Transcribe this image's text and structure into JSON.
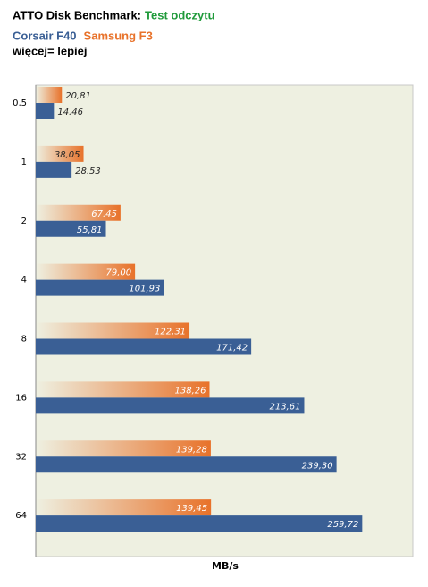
{
  "chart_data": {
    "type": "hbar",
    "title": "ATTO Disk Benchmark:",
    "title_highlight": "Test odczytu",
    "subtitle": "więcej= lepiej",
    "x_label": "MB/s",
    "categories": [
      "0,5",
      "1",
      "2",
      "4",
      "8",
      "16",
      "32",
      "64"
    ],
    "series": [
      {
        "name": "Corsair F40",
        "color": "#3a5f95",
        "values": [
          14.46,
          28.53,
          55.81,
          101.93,
          171.42,
          213.61,
          239.3,
          259.72
        ],
        "value_labels": [
          "14,46",
          "28,53",
          "55,81",
          "101,93",
          "171,42",
          "213,61",
          "239,30",
          "259,72"
        ]
      },
      {
        "name": "Samsung F3",
        "color": "#e8722a",
        "values": [
          20.81,
          38.05,
          67.45,
          79.0,
          122.31,
          138.26,
          139.28,
          139.45
        ],
        "value_labels": [
          "20,81",
          "38,05",
          "67,45",
          "79,00",
          "122,31",
          "138,26",
          "139,28",
          "139,45"
        ]
      }
    ],
    "xlim": [
      0,
      300
    ]
  }
}
